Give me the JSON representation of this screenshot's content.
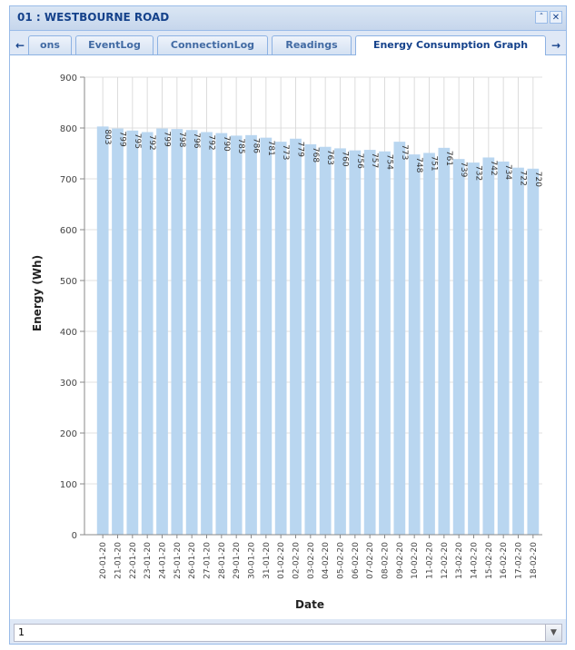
{
  "window": {
    "title": "01 : WESTBOURNE ROAD",
    "collapse_icon": "double-chevron-up-icon",
    "close_icon": "close-icon"
  },
  "tabs": {
    "scroll_left_icon": "arrow-left-icon",
    "scroll_right_icon": "arrow-right-icon",
    "items": [
      {
        "label": "ons",
        "active": false
      },
      {
        "label": "EventLog",
        "active": false
      },
      {
        "label": "ConnectionLog",
        "active": false
      },
      {
        "label": "Readings",
        "active": false
      },
      {
        "label": "Energy Consumption Graph",
        "active": true
      }
    ]
  },
  "bottom_combo": {
    "value": "1",
    "trigger_icon": "chevron-down-icon"
  },
  "chart_data": {
    "type": "bar",
    "title": "",
    "xlabel": "Date",
    "ylabel": "Energy (Wh)",
    "ylim": [
      0,
      900
    ],
    "yticks": [
      0,
      100,
      200,
      300,
      400,
      500,
      600,
      700,
      800,
      900
    ],
    "grid": true,
    "bar_color": "#b9d6f0",
    "categories": [
      "20-01-20",
      "21-01-20",
      "22-01-20",
      "23-01-20",
      "24-01-20",
      "25-01-20",
      "26-01-20",
      "27-01-20",
      "28-01-20",
      "29-01-20",
      "30-01-20",
      "31-01-20",
      "01-02-20",
      "02-02-20",
      "03-02-20",
      "04-02-20",
      "05-02-20",
      "06-02-20",
      "07-02-20",
      "08-02-20",
      "09-02-20",
      "10-02-20",
      "11-02-20",
      "12-02-20",
      "13-02-20",
      "14-02-20",
      "15-02-20",
      "16-02-20",
      "17-02-20",
      "18-02-20"
    ],
    "values": [
      803,
      799,
      795,
      792,
      799,
      798,
      796,
      792,
      790,
      785,
      786,
      781,
      773,
      779,
      768,
      763,
      760,
      756,
      757,
      754,
      773,
      748,
      751,
      761,
      739,
      732,
      742,
      734,
      722,
      720
    ]
  }
}
